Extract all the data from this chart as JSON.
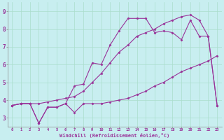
{
  "background_color": "#c8eef0",
  "grid_color": "#aaddcc",
  "line_color": "#993399",
  "marker": "D",
  "markersize": 1.5,
  "linewidth": 0.8,
  "xlim": [
    -0.5,
    23.5
  ],
  "ylim": [
    2.5,
    9.5
  ],
  "xticks": [
    0,
    1,
    2,
    3,
    4,
    5,
    6,
    7,
    8,
    9,
    10,
    11,
    12,
    13,
    14,
    15,
    16,
    17,
    18,
    19,
    20,
    21,
    22,
    23
  ],
  "yticks": [
    3,
    4,
    5,
    6,
    7,
    8,
    9
  ],
  "xlabel": "Windchill (Refroidissement éolien,°C)",
  "series": [
    [
      3.7,
      3.8,
      3.8,
      2.7,
      3.6,
      3.6,
      3.8,
      3.3,
      3.8,
      3.8,
      3.8,
      3.9,
      4.0,
      4.1,
      4.3,
      4.5,
      4.8,
      5.0,
      5.3,
      5.6,
      5.8,
      6.0,
      6.2,
      6.5
    ],
    [
      3.7,
      3.8,
      3.8,
      3.8,
      3.9,
      4.0,
      4.1,
      4.2,
      4.5,
      5.0,
      5.5,
      6.1,
      6.7,
      7.1,
      7.6,
      7.8,
      8.0,
      8.3,
      8.5,
      8.7,
      8.8,
      8.5,
      7.6,
      3.7
    ],
    [
      3.7,
      3.8,
      3.8,
      2.7,
      3.6,
      3.6,
      3.8,
      4.8,
      4.9,
      6.1,
      6.0,
      7.1,
      7.9,
      8.6,
      8.6,
      8.6,
      7.8,
      7.9,
      7.8,
      7.4,
      8.5,
      7.6,
      7.6,
      3.7
    ]
  ]
}
